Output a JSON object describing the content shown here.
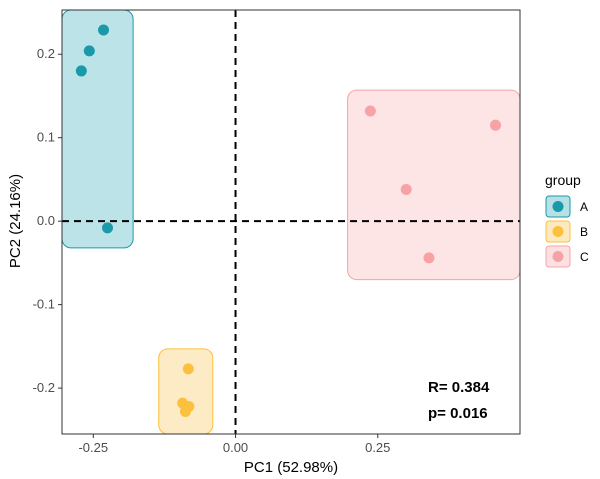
{
  "chart_data": {
    "type": "scatter",
    "title": "",
    "xlabel": "PC1 (52.98%)",
    "ylabel": "PC2 (24.16%)",
    "xlim": [
      -0.305,
      0.5
    ],
    "ylim": [
      -0.255,
      0.253
    ],
    "xticks": [
      -0.25,
      0.0,
      0.25
    ],
    "xtick_labels": [
      "-0.25",
      "0.00",
      "0.25"
    ],
    "yticks": [
      -0.2,
      -0.1,
      0.0,
      0.1,
      0.2
    ],
    "ytick_labels": [
      "-0.2",
      "-0.1",
      "0.0",
      "0.1",
      "0.2"
    ],
    "grid": false,
    "reference_lines": {
      "x": 0.0,
      "y": 0.0,
      "style": "dashed"
    },
    "legend": {
      "title": "group",
      "position": "right"
    },
    "series": [
      {
        "name": "A",
        "color": "#1a9aa8",
        "fill": "#b5e0e6",
        "points": [
          [
            -0.232,
            0.229
          ],
          [
            -0.257,
            0.204
          ],
          [
            -0.271,
            0.18
          ],
          [
            -0.225,
            -0.008
          ]
        ],
        "box": {
          "x": [
            -0.305,
            -0.18
          ],
          "y": [
            -0.032,
            0.253
          ]
        }
      },
      {
        "name": "B",
        "color": "#fcc13c",
        "fill": "#fde9c0",
        "points": [
          [
            -0.083,
            -0.177
          ],
          [
            -0.093,
            -0.218
          ],
          [
            -0.082,
            -0.222
          ],
          [
            -0.088,
            -0.228
          ]
        ],
        "box": {
          "x": [
            -0.135,
            -0.04
          ],
          "y": [
            -0.255,
            -0.153
          ]
        }
      },
      {
        "name": "C",
        "color": "#f7a3a6",
        "fill": "#fde1e2",
        "points": [
          [
            0.237,
            0.132
          ],
          [
            0.457,
            0.115
          ],
          [
            0.3,
            0.038
          ],
          [
            0.34,
            -0.044
          ]
        ],
        "box": {
          "x": [
            0.197,
            0.5
          ],
          "y": [
            -0.07,
            0.157
          ]
        }
      }
    ],
    "annotations": [
      "R= 0.384",
      "p= 0.016"
    ]
  }
}
